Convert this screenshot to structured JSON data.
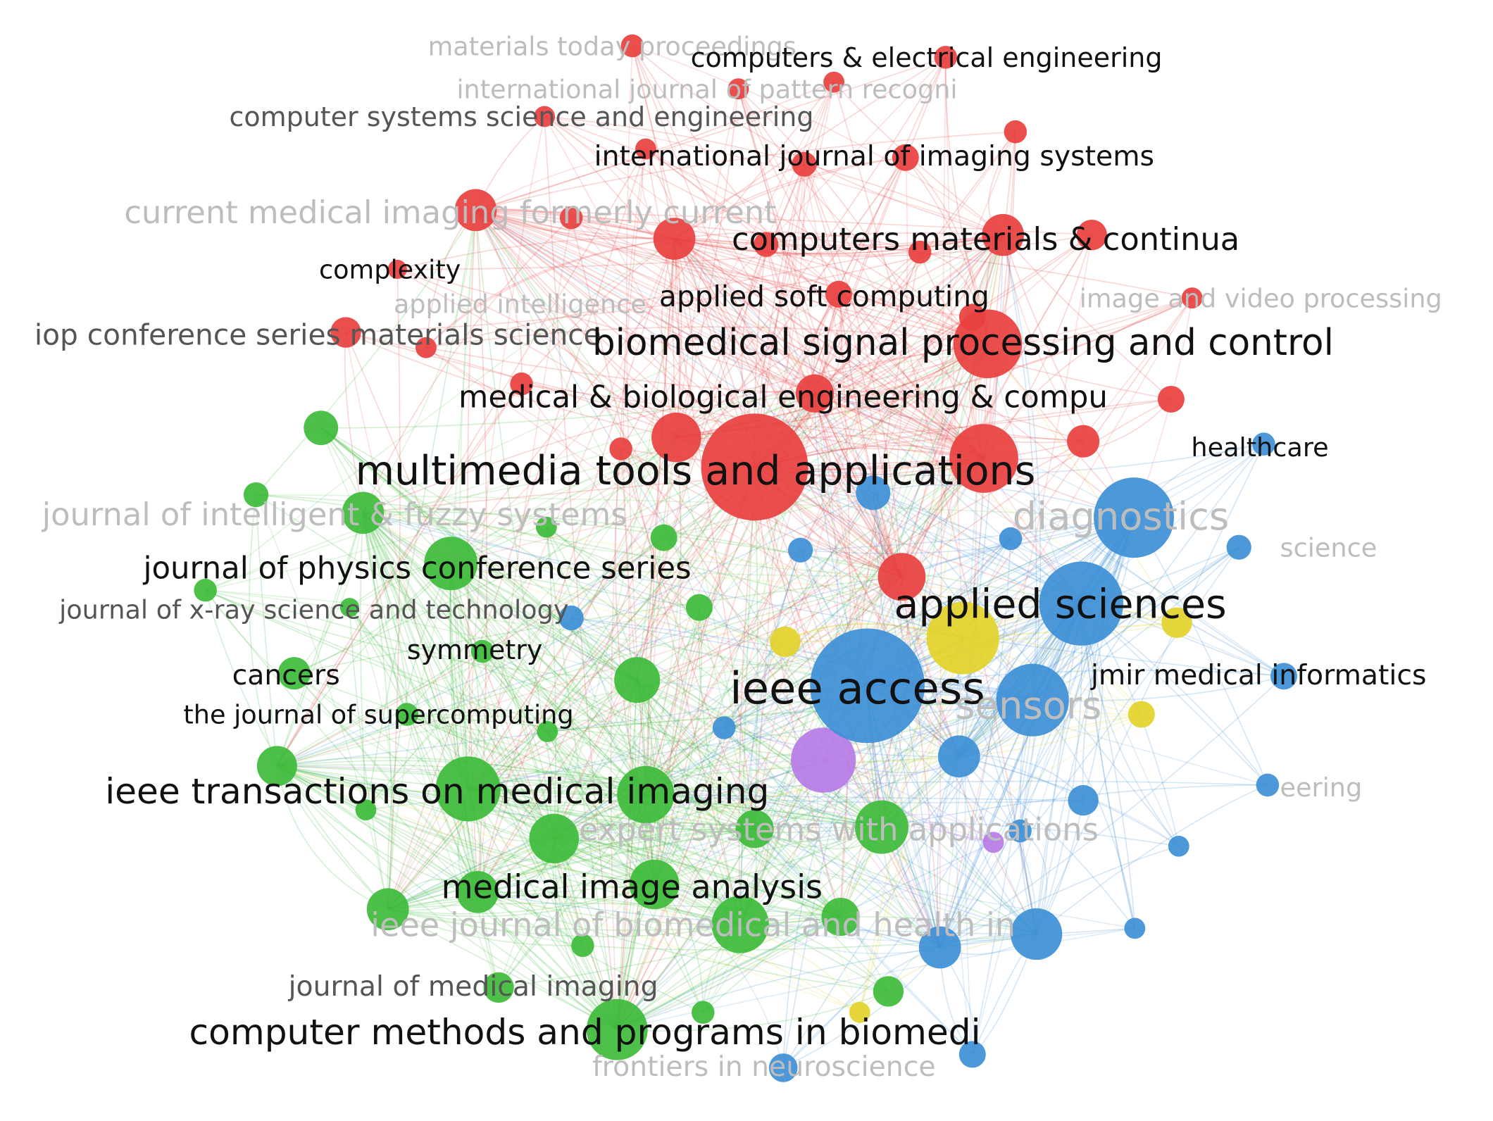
{
  "colors": {
    "red": "#e8403f",
    "green": "#3dbb3a",
    "blue": "#3d8fd6",
    "yellow": "#e3d32a",
    "purple": "#b67ce6",
    "label_dark": "#111111",
    "label_mid": "#555555",
    "label_faint": "#bdbdbd"
  },
  "network": {
    "clusters": [
      "red",
      "green",
      "blue",
      "yellow",
      "purple"
    ],
    "labels": [
      {
        "id": "lbl-01",
        "text": "materials today proceedings",
        "tone": "faint"
      },
      {
        "id": "lbl-02",
        "text": "computers & electrical engineering",
        "tone": "dark"
      },
      {
        "id": "lbl-03",
        "text": "international journal of pattern recogni",
        "tone": "faint"
      },
      {
        "id": "lbl-04",
        "text": "computer systems science and engineering",
        "tone": "mid"
      },
      {
        "id": "lbl-05",
        "text": "international journal of imaging systems",
        "tone": "dark"
      },
      {
        "id": "lbl-06",
        "text": "current medical imaging formerly current",
        "tone": "faint"
      },
      {
        "id": "lbl-07",
        "text": "computers materials & continua",
        "tone": "dark"
      },
      {
        "id": "lbl-08",
        "text": "complexity",
        "tone": "dark"
      },
      {
        "id": "lbl-09",
        "text": "applied intelligence",
        "tone": "faint"
      },
      {
        "id": "lbl-10",
        "text": "applied soft computing",
        "tone": "dark"
      },
      {
        "id": "lbl-11",
        "text": "image and video processing",
        "tone": "faint"
      },
      {
        "id": "lbl-12",
        "text": "iop conference series materials science",
        "tone": "mid"
      },
      {
        "id": "lbl-13",
        "text": "biomedical signal processing and control",
        "tone": "dark"
      },
      {
        "id": "lbl-14",
        "text": "medical & biological engineering & compu",
        "tone": "dark"
      },
      {
        "id": "lbl-15",
        "text": "healthcare",
        "tone": "dark"
      },
      {
        "id": "lbl-16",
        "text": "multimedia tools and applications",
        "tone": "dark"
      },
      {
        "id": "lbl-17",
        "text": "journal of intelligent & fuzzy systems",
        "tone": "faint"
      },
      {
        "id": "lbl-18",
        "text": "diagnostics",
        "tone": "faint"
      },
      {
        "id": "lbl-19",
        "text": "science",
        "tone": "faint"
      },
      {
        "id": "lbl-20",
        "text": "journal of physics conference series",
        "tone": "dark"
      },
      {
        "id": "lbl-21",
        "text": "journal of x-ray science and technology",
        "tone": "mid"
      },
      {
        "id": "lbl-22",
        "text": "applied sciences",
        "tone": "dark"
      },
      {
        "id": "lbl-23",
        "text": "symmetry",
        "tone": "dark"
      },
      {
        "id": "lbl-24",
        "text": "cancers",
        "tone": "dark"
      },
      {
        "id": "lbl-25",
        "text": "jmir medical informatics",
        "tone": "dark"
      },
      {
        "id": "lbl-26",
        "text": "ieee access",
        "tone": "dark"
      },
      {
        "id": "lbl-27",
        "text": "the journal of supercomputing",
        "tone": "dark"
      },
      {
        "id": "lbl-28",
        "text": "sensors",
        "tone": "faint"
      },
      {
        "id": "lbl-29",
        "text": "ieee transactions on medical imaging",
        "tone": "dark"
      },
      {
        "id": "lbl-30",
        "text": "eering",
        "tone": "faint"
      },
      {
        "id": "lbl-31",
        "text": "expert systems with applications",
        "tone": "faint"
      },
      {
        "id": "lbl-32",
        "text": "medical image analysis",
        "tone": "dark"
      },
      {
        "id": "lbl-33",
        "text": "ieee journal of biomedical and health in",
        "tone": "faint"
      },
      {
        "id": "lbl-34",
        "text": "journal of medical imaging",
        "tone": "mid"
      },
      {
        "id": "lbl-35",
        "text": "computer methods and programs in biomedi",
        "tone": "dark"
      },
      {
        "id": "lbl-36",
        "text": "frontiers in neuroscience",
        "tone": "faint"
      }
    ]
  }
}
